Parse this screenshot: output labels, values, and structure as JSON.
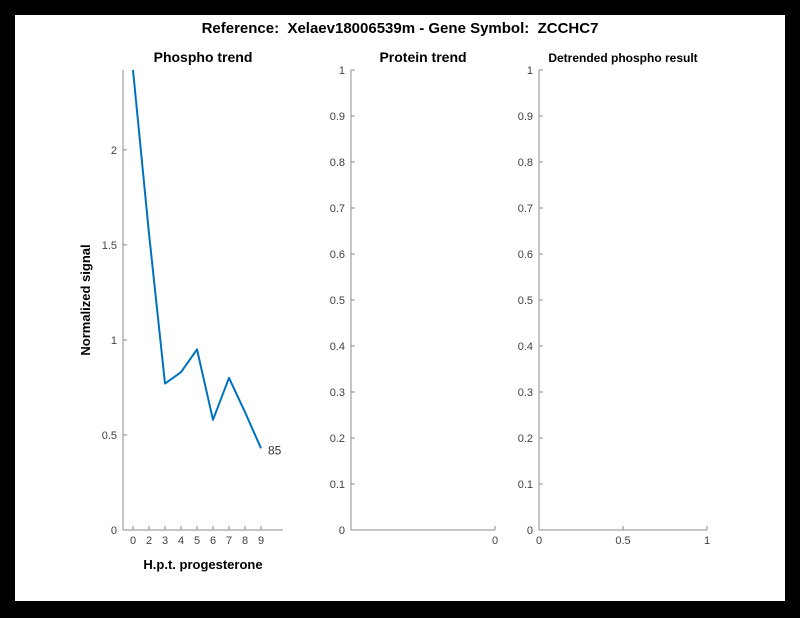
{
  "figure": {
    "title": "Reference:  Xelaev18006539m - Gene Symbol:  ZCCHC7",
    "background_color": "#ffffff",
    "border_color": "#000000"
  },
  "chart_data": [
    {
      "type": "line",
      "title": "Phospho trend",
      "xlabel": "H.p.t. progesterone",
      "ylabel": "Normalized signal",
      "x_tick_labels": [
        "0",
        "2",
        "3",
        "4",
        "5",
        "6",
        "7",
        "8",
        "9"
      ],
      "values": [
        2.42,
        1.56,
        0.77,
        0.83,
        0.95,
        0.58,
        0.8,
        0.62,
        0.43
      ],
      "ylim": [
        0,
        2.42
      ],
      "y_ticks": [
        {
          "v": 0,
          "label": "0"
        },
        {
          "v": 0.5,
          "label": "0.5"
        },
        {
          "v": 1,
          "label": "1"
        },
        {
          "v": 1.5,
          "label": "1.5"
        },
        {
          "v": 2,
          "label": "2"
        }
      ],
      "end_annotation": "85",
      "line_color": "#0072BD",
      "legend": "none",
      "grid": "off"
    },
    {
      "type": "line",
      "title": "Protein trend",
      "xlabel": "",
      "ylabel": "",
      "values": [],
      "ylim": [
        0,
        1
      ],
      "y_ticks": [
        {
          "v": 0,
          "label": "0"
        },
        {
          "v": 0.1,
          "label": "0.1"
        },
        {
          "v": 0.2,
          "label": "0.2"
        },
        {
          "v": 0.3,
          "label": "0.3"
        },
        {
          "v": 0.4,
          "label": "0.4"
        },
        {
          "v": 0.5,
          "label": "0.5"
        },
        {
          "v": 0.6,
          "label": "0.6"
        },
        {
          "v": 0.7,
          "label": "0.7"
        },
        {
          "v": 0.8,
          "label": "0.8"
        },
        {
          "v": 0.9,
          "label": "0.9"
        },
        {
          "v": 1,
          "label": "1"
        }
      ],
      "x_ticks": [
        {
          "pos": 1,
          "label": "0"
        }
      ],
      "legend": "none",
      "grid": "off"
    },
    {
      "type": "line",
      "title": "Detrended phospho result",
      "xlabel": "",
      "ylabel": "",
      "values": [],
      "ylim": [
        0,
        1
      ],
      "y_ticks": [
        {
          "v": 0,
          "label": "0"
        },
        {
          "v": 0.1,
          "label": "0.1"
        },
        {
          "v": 0.2,
          "label": "0.2"
        },
        {
          "v": 0.3,
          "label": "0.3"
        },
        {
          "v": 0.4,
          "label": "0.4"
        },
        {
          "v": 0.5,
          "label": "0.5"
        },
        {
          "v": 0.6,
          "label": "0.6"
        },
        {
          "v": 0.7,
          "label": "0.7"
        },
        {
          "v": 0.8,
          "label": "0.8"
        },
        {
          "v": 0.9,
          "label": "0.9"
        },
        {
          "v": 1,
          "label": "1"
        }
      ],
      "x_ticks": [
        {
          "pos": 0,
          "label": "0"
        },
        {
          "pos": 0.5,
          "label": "0.5"
        },
        {
          "pos": 1,
          "label": "1"
        }
      ],
      "legend": "none",
      "grid": "off"
    }
  ],
  "colors": {
    "axis_line": "#8c8c8c",
    "tick_text": "#3f3f3f",
    "series_blue": "#0072BD"
  }
}
